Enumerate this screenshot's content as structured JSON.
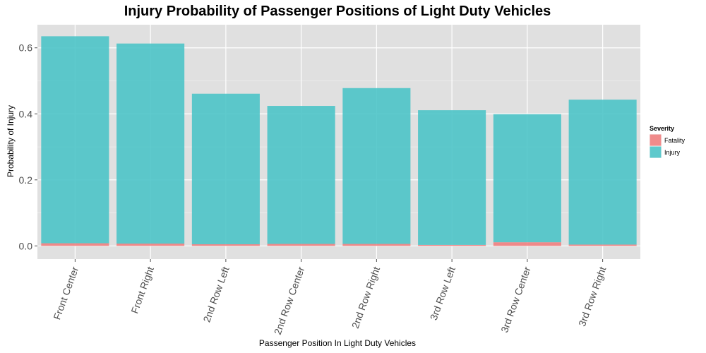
{
  "chart_data": {
    "type": "bar",
    "stacked": true,
    "title": "Injury Probability of Passenger Positions of Light Duty Vehicles",
    "xlabel": "Passenger Position In Light Duty Vehicles",
    "ylabel": "Probability of Injury",
    "categories": [
      "Front Center",
      "Front Right",
      "2nd Row Left",
      "2nd Row Center",
      "2nd Row Right",
      "3rd Row Left",
      "3rd Row Center",
      "3rd Row Right"
    ],
    "series": [
      {
        "name": "Fatality",
        "color": "#f08080",
        "values": [
          0.008,
          0.007,
          0.005,
          0.006,
          0.006,
          0.003,
          0.011,
          0.004
        ]
      },
      {
        "name": "Injury",
        "color": "#4cc4c8",
        "values": [
          0.627,
          0.606,
          0.456,
          0.418,
          0.472,
          0.408,
          0.388,
          0.439
        ]
      }
    ],
    "ylim": [
      -0.04,
      0.67
    ],
    "yticks": [
      0.0,
      0.2,
      0.4,
      0.6
    ],
    "ytick_labels": [
      "0.0",
      "0.2",
      "0.4",
      "0.6"
    ],
    "grid": true,
    "legend": {
      "title": "Severity",
      "position": "right"
    },
    "panel_color": "#e0e0e0",
    "grid_color": "#ffffff"
  }
}
